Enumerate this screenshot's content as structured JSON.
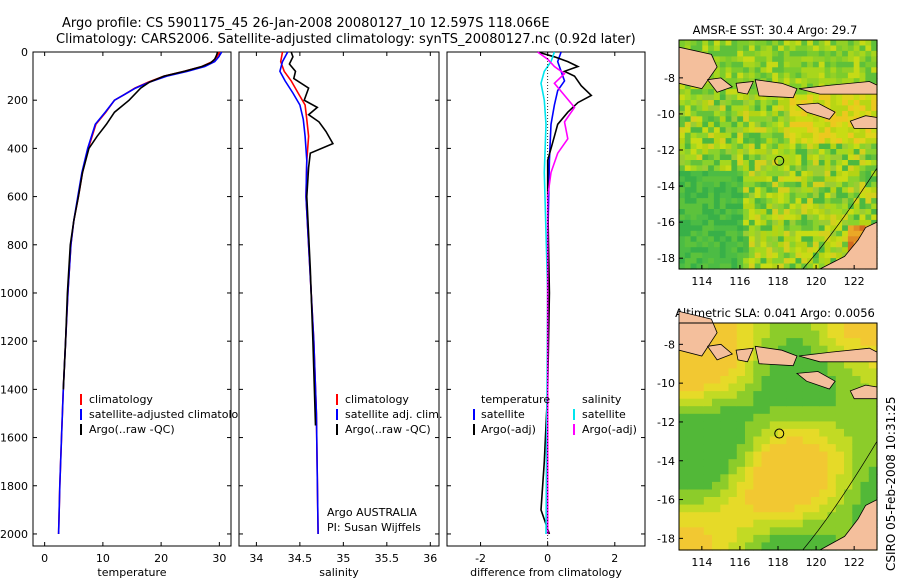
{
  "header": {
    "title_line1": "Argo profile: CS 5901175_45 26-Jan-2008 20080127_10 12.597S 118.066E",
    "title_line2": "Climatology: CARS2006. Satellite-adjusted climatology: synTS_20080127.nc (0.92d later)"
  },
  "side_text": "CSIRO 05-Feb-2008 10:31:25",
  "colors": {
    "climatology": "#ff0000",
    "satellite": "#0000ff",
    "argo": "#000000",
    "temp_sat": "#00e5ee",
    "sal_adj": "#ff00ff"
  },
  "chart_data": [
    {
      "type": "line",
      "xlabel": "temperature",
      "ylabel": "",
      "xlim": [
        -2,
        32
      ],
      "ylim": [
        2050,
        0
      ],
      "xticks": [
        0,
        10,
        20,
        30
      ],
      "yticks": [
        0,
        200,
        400,
        600,
        800,
        1000,
        1200,
        1400,
        1600,
        1800,
        2000
      ],
      "legend": [
        "climatology",
        "satellite-adjusted climatology",
        "Argo(..raw -QC)"
      ],
      "legend_visible": [
        "climatology",
        "satellite-adjusted climatolog",
        "Argo(..raw -QC)"
      ],
      "series": [
        {
          "name": "climatology",
          "color": "#ff0000",
          "x": [
            30.0,
            29.6,
            28.8,
            27.0,
            24.0,
            20.5,
            17.8,
            15.5,
            13.8,
            12.0,
            10.5,
            8.8,
            7.5,
            6.5,
            5.8,
            5.0,
            4.5,
            4.0,
            3.6,
            3.2,
            2.9,
            2.6,
            2.4
          ],
          "y": [
            0,
            20,
            40,
            60,
            80,
            100,
            125,
            150,
            175,
            200,
            250,
            300,
            400,
            500,
            600,
            700,
            800,
            1000,
            1200,
            1400,
            1600,
            1800,
            2000
          ]
        },
        {
          "name": "satellite-adjusted climatology",
          "color": "#0000ff",
          "x": [
            30.4,
            29.9,
            29.2,
            27.5,
            24.5,
            21.0,
            18.0,
            15.6,
            13.8,
            12.0,
            10.4,
            8.7,
            7.4,
            6.4,
            5.7,
            5.0,
            4.5,
            4.0,
            3.6,
            3.2,
            2.9,
            2.6,
            2.4
          ],
          "y": [
            0,
            20,
            40,
            60,
            80,
            100,
            125,
            150,
            175,
            200,
            250,
            300,
            400,
            500,
            600,
            700,
            800,
            1000,
            1200,
            1400,
            1600,
            1800,
            2000
          ]
        },
        {
          "name": "Argo(..raw -QC)",
          "color": "#000000",
          "x": [
            29.7,
            29.5,
            29.2,
            28.5,
            27.0,
            24.0,
            20.5,
            18.0,
            16.5,
            14.5,
            12.0,
            10.6,
            9.0,
            7.6,
            6.5,
            5.8,
            5.0,
            4.4,
            3.9,
            3.6,
            3.2
          ],
          "y": [
            0,
            15,
            30,
            45,
            60,
            80,
            100,
            125,
            150,
            200,
            250,
            300,
            350,
            400,
            500,
            600,
            700,
            800,
            1000,
            1200,
            1400
          ]
        }
      ]
    },
    {
      "type": "line",
      "xlabel": "salinity",
      "xlim": [
        33.8,
        36.1
      ],
      "ylim": [
        2050,
        0
      ],
      "xticks": [
        34,
        34.5,
        35,
        35.5,
        36
      ],
      "legend": [
        "climatology",
        "satellite adj. clim.",
        "Argo(..raw -QC)"
      ],
      "annotations": [
        "Argo AUSTRALIA",
        "PI: Susan Wijffels"
      ],
      "series": [
        {
          "name": "climatology",
          "color": "#ff0000",
          "x": [
            34.3,
            34.28,
            34.32,
            34.4,
            34.48,
            34.56,
            34.58,
            34.6,
            34.58,
            34.57,
            34.6,
            34.63,
            34.66,
            34.69,
            34.71
          ],
          "y": [
            0,
            40,
            80,
            120,
            170,
            220,
            280,
            350,
            450,
            600,
            800,
            1000,
            1200,
            1500,
            2000
          ]
        },
        {
          "name": "satellite adj. clim.",
          "color": "#0000ff",
          "x": [
            34.36,
            34.3,
            34.27,
            34.33,
            34.42,
            34.5,
            34.54,
            34.56,
            34.58,
            34.57,
            34.6,
            34.63,
            34.66,
            34.69,
            34.71
          ],
          "y": [
            0,
            40,
            80,
            120,
            170,
            220,
            280,
            350,
            450,
            600,
            800,
            1000,
            1200,
            1500,
            2000
          ]
        },
        {
          "name": "Argo(..raw -QC)",
          "color": "#000000",
          "x": [
            34.4,
            34.42,
            34.38,
            34.45,
            34.43,
            34.6,
            34.55,
            34.7,
            34.6,
            34.72,
            34.8,
            34.88,
            34.62,
            34.6,
            34.58,
            34.62,
            34.65,
            34.68
          ],
          "y": [
            0,
            20,
            50,
            80,
            110,
            150,
            200,
            230,
            260,
            290,
            330,
            380,
            420,
            480,
            600,
            900,
            1200,
            1550
          ]
        }
      ]
    },
    {
      "type": "line",
      "xlabel": "difference from climatology",
      "xlim": [
        -3.0,
        2.9
      ],
      "ylim": [
        2050,
        0
      ],
      "xticks": [
        -2,
        0,
        2
      ],
      "legend_left": [
        "temperature",
        "satellite",
        "Argo(-adj)"
      ],
      "legend_right": [
        "salinity",
        "satellite",
        "Argo(-adj)"
      ],
      "series": [
        {
          "name": "temperature satellite",
          "color": "#0000ff",
          "x": [
            0.4,
            0.3,
            0.4,
            0.5,
            0.3,
            0.2,
            0.1,
            0.05,
            0.0,
            0.0
          ],
          "y": [
            0,
            40,
            80,
            120,
            160,
            220,
            300,
            450,
            800,
            2000
          ]
        },
        {
          "name": "temperature Argo(-adj)",
          "color": "#000000",
          "x": [
            -0.3,
            0.2,
            0.6,
            0.9,
            0.5,
            0.8,
            1.0,
            1.3,
            0.9,
            0.6,
            0.3,
            0.2,
            0.0,
            0.0,
            0.05,
            0.0,
            -0.1,
            -0.2,
            0.05
          ],
          "y": [
            0,
            20,
            40,
            60,
            80,
            100,
            140,
            180,
            210,
            250,
            300,
            350,
            450,
            600,
            1000,
            1400,
            1700,
            1900,
            2000
          ]
        },
        {
          "name": "salinity satellite",
          "color": "#00e5ee",
          "x": [
            0.2,
            0.1,
            -0.1,
            -0.2,
            -0.1,
            -0.05,
            -0.1,
            0.0,
            -0.05
          ],
          "y": [
            0,
            40,
            80,
            130,
            200,
            300,
            500,
            1000,
            2000
          ]
        },
        {
          "name": "salinity Argo(-adj)",
          "color": "#ff00ff",
          "x": [
            -0.3,
            0.0,
            0.2,
            0.5,
            0.2,
            0.5,
            0.8,
            0.5,
            0.6,
            0.3,
            0.1,
            0.0,
            0.0
          ],
          "y": [
            0,
            30,
            60,
            90,
            130,
            180,
            230,
            290,
            360,
            420,
            500,
            600,
            2000
          ]
        }
      ]
    },
    {
      "type": "heatmap",
      "title": "AMSR-E SST: 30.4 Argo: 29.7",
      "xlim": [
        112.8,
        123.2
      ],
      "ylim": [
        -18.6,
        -5.9
      ],
      "xticks": [
        114,
        116,
        118,
        120,
        122
      ],
      "yticks": [
        -8,
        -10,
        -12,
        -14,
        -16,
        -18
      ],
      "point": [
        118.066,
        -12.597
      ]
    },
    {
      "type": "heatmap",
      "title": "Altimetric SLA: 0.041 Argo: 0.0056",
      "xlim": [
        112.8,
        123.2
      ],
      "ylim": [
        -18.6,
        -6.9
      ],
      "xticks": [
        114,
        116,
        118,
        120,
        122
      ],
      "yticks": [
        -8,
        -10,
        -12,
        -14,
        -16,
        -18
      ],
      "point": [
        118.066,
        -12.597
      ]
    }
  ]
}
